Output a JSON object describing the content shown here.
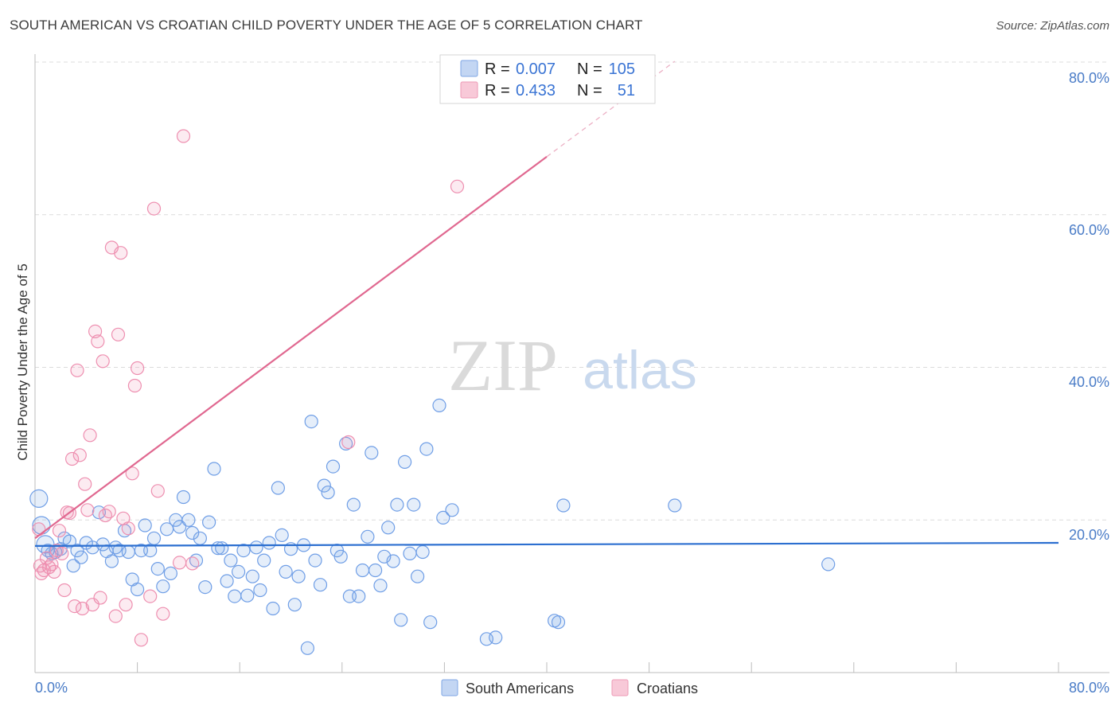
{
  "title": "SOUTH AMERICAN VS CROATIAN CHILD POVERTY UNDER THE AGE OF 5 CORRELATION CHART",
  "source": "Source: ZipAtlas.com",
  "watermark": {
    "zip": "ZIP",
    "atlas": "atlas"
  },
  "stats": [
    {
      "r_label": "R =",
      "r_value": "0.007",
      "n_label": "N =",
      "n_value": "105",
      "color": "#6f9ee6"
    },
    {
      "r_label": "R =",
      "r_value": "0.433",
      "n_label": "N =",
      "n_value": "51",
      "color": "#ee8fb0"
    }
  ],
  "chart_data": {
    "type": "scatter",
    "title": "SOUTH AMERICAN VS CROATIAN CHILD POVERTY UNDER THE AGE OF 5 CORRELATION CHART",
    "xlabel": "",
    "ylabel": "Child Poverty Under the Age of 5",
    "xlim": [
      0,
      80
    ],
    "ylim": [
      0,
      80
    ],
    "x_tick_labels": [
      "0.0%",
      "80.0%"
    ],
    "y_tick_labels": [
      "20.0%",
      "40.0%",
      "60.0%",
      "80.0%"
    ],
    "y_ticks": [
      20,
      40,
      60,
      80
    ],
    "grid": true,
    "legend_position": "bottom-center",
    "series": [
      {
        "name": "South Americans",
        "color": "#6f9ee6",
        "trend": {
          "x": [
            0,
            80
          ],
          "y": [
            16.6,
            17.0
          ]
        },
        "points": [
          [
            0.3,
            22.8
          ],
          [
            0.5,
            19.3
          ],
          [
            0.8,
            16.8
          ],
          [
            1.0,
            16.0
          ],
          [
            1.3,
            15.6
          ],
          [
            1.6,
            15.8
          ],
          [
            2.0,
            16.2
          ],
          [
            2.3,
            17.6
          ],
          [
            2.7,
            17.2
          ],
          [
            3.0,
            14.0
          ],
          [
            3.3,
            16.0
          ],
          [
            3.6,
            15.1
          ],
          [
            4.0,
            17.0
          ],
          [
            4.5,
            16.4
          ],
          [
            5.0,
            21.0
          ],
          [
            5.3,
            16.8
          ],
          [
            5.6,
            15.9
          ],
          [
            6.0,
            14.6
          ],
          [
            6.3,
            16.4
          ],
          [
            6.6,
            16.0
          ],
          [
            7.0,
            18.6
          ],
          [
            7.3,
            15.8
          ],
          [
            7.6,
            12.2
          ],
          [
            8.0,
            10.9
          ],
          [
            8.3,
            16.0
          ],
          [
            8.6,
            19.3
          ],
          [
            9.0,
            16.0
          ],
          [
            9.3,
            17.6
          ],
          [
            9.6,
            13.6
          ],
          [
            10.0,
            11.3
          ],
          [
            10.3,
            18.8
          ],
          [
            10.6,
            13.0
          ],
          [
            11.0,
            20.0
          ],
          [
            11.3,
            19.1
          ],
          [
            11.6,
            23.0
          ],
          [
            12.0,
            20.0
          ],
          [
            12.3,
            18.3
          ],
          [
            12.6,
            14.7
          ],
          [
            12.9,
            17.6
          ],
          [
            13.3,
            11.2
          ],
          [
            13.6,
            19.7
          ],
          [
            14.0,
            26.7
          ],
          [
            14.3,
            16.3
          ],
          [
            14.6,
            16.3
          ],
          [
            15.0,
            12.0
          ],
          [
            15.3,
            14.7
          ],
          [
            15.6,
            10.0
          ],
          [
            15.9,
            13.2
          ],
          [
            16.3,
            16.0
          ],
          [
            16.6,
            10.1
          ],
          [
            17.0,
            12.6
          ],
          [
            17.3,
            16.4
          ],
          [
            17.6,
            10.8
          ],
          [
            17.9,
            14.7
          ],
          [
            18.3,
            17.0
          ],
          [
            18.6,
            8.4
          ],
          [
            19.0,
            24.2
          ],
          [
            19.3,
            18.0
          ],
          [
            19.6,
            13.2
          ],
          [
            20.0,
            16.2
          ],
          [
            20.3,
            8.9
          ],
          [
            20.6,
            12.6
          ],
          [
            21.0,
            16.7
          ],
          [
            21.3,
            3.2
          ],
          [
            21.6,
            32.9
          ],
          [
            21.9,
            14.7
          ],
          [
            22.3,
            11.5
          ],
          [
            22.6,
            24.5
          ],
          [
            22.9,
            23.6
          ],
          [
            23.3,
            27.0
          ],
          [
            23.6,
            16.0
          ],
          [
            23.9,
            15.2
          ],
          [
            24.3,
            30.0
          ],
          [
            24.6,
            10.0
          ],
          [
            24.9,
            22.0
          ],
          [
            25.3,
            10.0
          ],
          [
            25.6,
            13.4
          ],
          [
            26.0,
            17.8
          ],
          [
            26.3,
            28.8
          ],
          [
            26.6,
            13.4
          ],
          [
            27.0,
            11.4
          ],
          [
            27.3,
            15.2
          ],
          [
            27.6,
            19.0
          ],
          [
            28.0,
            14.6
          ],
          [
            28.3,
            22.0
          ],
          [
            28.6,
            6.9
          ],
          [
            28.9,
            27.6
          ],
          [
            29.3,
            15.6
          ],
          [
            29.6,
            22.0
          ],
          [
            29.9,
            12.6
          ],
          [
            30.3,
            15.8
          ],
          [
            30.6,
            29.3
          ],
          [
            30.9,
            6.6
          ],
          [
            31.6,
            35.0
          ],
          [
            31.9,
            20.3
          ],
          [
            32.6,
            21.3
          ],
          [
            35.3,
            4.4
          ],
          [
            36.0,
            4.6
          ],
          [
            40.6,
            6.8
          ],
          [
            40.9,
            6.6
          ],
          [
            41.3,
            21.9
          ],
          [
            50.0,
            21.9
          ],
          [
            62.0,
            14.2
          ]
        ]
      },
      {
        "name": "Croatians",
        "color": "#ee8fb0",
        "trend": {
          "x": [
            0,
            40
          ],
          "y": [
            17.6,
            67.6
          ]
        },
        "trend_dashed": {
          "x": [
            40,
            50
          ],
          "y": [
            67.6,
            80.1
          ]
        },
        "points": [
          [
            0.3,
            18.8
          ],
          [
            0.4,
            14.0
          ],
          [
            0.5,
            13.0
          ],
          [
            0.7,
            13.4
          ],
          [
            0.9,
            15.0
          ],
          [
            1.1,
            13.8
          ],
          [
            1.3,
            14.2
          ],
          [
            1.5,
            13.2
          ],
          [
            1.7,
            16.0
          ],
          [
            1.9,
            18.6
          ],
          [
            2.1,
            15.6
          ],
          [
            2.3,
            10.8
          ],
          [
            2.5,
            21.0
          ],
          [
            2.7,
            20.9
          ],
          [
            2.9,
            28.0
          ],
          [
            3.1,
            8.7
          ],
          [
            3.3,
            39.6
          ],
          [
            3.5,
            28.5
          ],
          [
            3.7,
            8.4
          ],
          [
            3.9,
            24.7
          ],
          [
            4.1,
            21.3
          ],
          [
            4.3,
            31.1
          ],
          [
            4.5,
            8.9
          ],
          [
            4.7,
            44.7
          ],
          [
            4.9,
            43.4
          ],
          [
            5.1,
            9.8
          ],
          [
            5.3,
            40.8
          ],
          [
            5.5,
            20.6
          ],
          [
            5.8,
            21.1
          ],
          [
            6.0,
            55.7
          ],
          [
            6.3,
            7.4
          ],
          [
            6.5,
            44.3
          ],
          [
            6.7,
            55.0
          ],
          [
            6.9,
            20.2
          ],
          [
            7.1,
            8.9
          ],
          [
            7.3,
            18.9
          ],
          [
            7.6,
            26.1
          ],
          [
            7.8,
            37.6
          ],
          [
            8.0,
            39.9
          ],
          [
            8.3,
            4.3
          ],
          [
            9.0,
            10.0
          ],
          [
            9.3,
            60.8
          ],
          [
            9.6,
            23.8
          ],
          [
            10.0,
            7.7
          ],
          [
            11.3,
            14.4
          ],
          [
            11.6,
            70.3
          ],
          [
            12.3,
            14.3
          ],
          [
            24.5,
            30.2
          ],
          [
            33.0,
            63.7
          ]
        ]
      }
    ]
  }
}
